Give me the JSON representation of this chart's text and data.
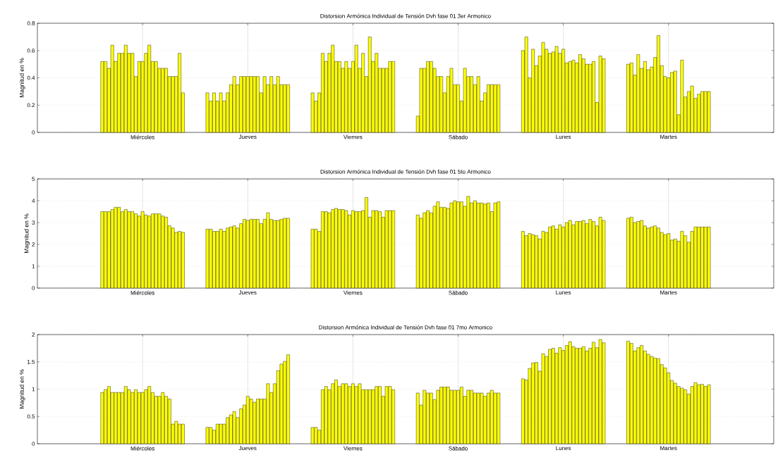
{
  "chart_data": [
    {
      "type": "bar",
      "title": "Distorsion Armónica Individual de Tensión Dvh fase 01 3er Armonico",
      "ylabel": "Magnitud en %",
      "categories": [
        "Miércoles",
        "Jueves",
        "Viernes",
        "Sábado",
        "Lunes",
        "Martes"
      ],
      "ylim": [
        0,
        0.8
      ],
      "yticks": [
        0,
        0.2,
        0.4,
        0.6,
        0.8
      ],
      "grid": true,
      "series": [
        {
          "color": "#ffff00",
          "values": [
            0.52,
            0.29,
            0.29,
            0.12,
            0.6,
            0.5
          ]
        },
        {
          "color": "#ffff00",
          "values": [
            0.52,
            0.23,
            0.23,
            0.47,
            0.7,
            0.51
          ]
        },
        {
          "color": "#ffff00",
          "values": [
            0.47,
            0.29,
            0.29,
            0.47,
            0.4,
            0.42
          ]
        },
        {
          "color": "#ffff00",
          "values": [
            0.64,
            0.23,
            0.58,
            0.52,
            0.61,
            0.57
          ]
        },
        {
          "color": "#ffff00",
          "values": [
            0.52,
            0.29,
            0.52,
            0.52,
            0.49,
            0.47
          ]
        },
        {
          "color": "#ffff00",
          "values": [
            0.58,
            0.23,
            0.58,
            0.47,
            0.56,
            0.52
          ]
        },
        {
          "color": "#ffff00",
          "values": [
            0.58,
            0.29,
            0.64,
            0.41,
            0.66,
            0.46
          ]
        },
        {
          "color": "#ffff00",
          "values": [
            0.64,
            0.35,
            0.52,
            0.41,
            0.61,
            0.48
          ]
        },
        {
          "color": "#ffff00",
          "values": [
            0.58,
            0.41,
            0.52,
            0.29,
            0.58,
            0.55
          ]
        },
        {
          "color": "#ffff00",
          "values": [
            0.58,
            0.35,
            0.47,
            0.41,
            0.59,
            0.71
          ]
        },
        {
          "color": "#ffff00",
          "values": [
            0.41,
            0.41,
            0.52,
            0.47,
            0.63,
            0.49
          ]
        },
        {
          "color": "#ffff00",
          "values": [
            0.52,
            0.41,
            0.47,
            0.35,
            0.58,
            0.41
          ]
        },
        {
          "color": "#ffff00",
          "values": [
            0.52,
            0.41,
            0.52,
            0.35,
            0.61,
            0.4
          ]
        },
        {
          "color": "#ffff00",
          "values": [
            0.58,
            0.41,
            0.64,
            0.23,
            0.51,
            0.44
          ]
        },
        {
          "color": "#ffff00",
          "values": [
            0.64,
            0.41,
            0.47,
            0.47,
            0.52,
            0.45
          ]
        },
        {
          "color": "#ffff00",
          "values": [
            0.52,
            0.41,
            0.58,
            0.41,
            0.53,
            0.13
          ]
        },
        {
          "color": "#ffff00",
          "values": [
            0.52,
            0.29,
            0.41,
            0.41,
            0.51,
            0.53
          ]
        },
        {
          "color": "#ffff00",
          "values": [
            0.47,
            0.41,
            0.7,
            0.35,
            0.57,
            0.26
          ]
        },
        {
          "color": "#ffff00",
          "values": [
            0.47,
            0.35,
            0.52,
            0.41,
            0.54,
            0.3
          ]
        },
        {
          "color": "#ffff00",
          "values": [
            0.47,
            0.41,
            0.58,
            0.23,
            0.5,
            0.34
          ]
        },
        {
          "color": "#ffff00",
          "values": [
            0.41,
            0.35,
            0.47,
            0.29,
            0.5,
            0.25
          ]
        },
        {
          "color": "#ffff00",
          "values": [
            0.41,
            0.41,
            0.47,
            0.35,
            0.52,
            0.28
          ]
        },
        {
          "color": "#ffff00",
          "values": [
            0.41,
            0.35,
            0.47,
            0.35,
            0.22,
            0.3
          ]
        },
        {
          "color": "#ffff00",
          "values": [
            0.58,
            0.35,
            0.52,
            0.35,
            0.56,
            0.3
          ]
        },
        {
          "color": "#ffff00",
          "values": [
            0.29,
            0.35,
            0.52,
            0.35,
            0.54,
            0.3
          ]
        }
      ]
    },
    {
      "type": "bar",
      "title": "Distorsion Armónica Individual de Tensión Dvh fase 01 5to Armonico",
      "ylabel": "Magnitud en %",
      "categories": [
        "Miércoles",
        "Jueves",
        "Viernes",
        "Sábado",
        "Lunes",
        "Martes"
      ],
      "ylim": [
        0,
        5
      ],
      "yticks": [
        0,
        1,
        2,
        3,
        4,
        5
      ],
      "grid": true,
      "series": [
        {
          "color": "#ffff00",
          "values": [
            3.5,
            2.7,
            2.7,
            3.35,
            2.6,
            3.2
          ]
        },
        {
          "color": "#ffff00",
          "values": [
            3.5,
            2.7,
            2.7,
            3.2,
            2.4,
            3.25
          ]
        },
        {
          "color": "#ffff00",
          "values": [
            3.5,
            2.6,
            2.6,
            3.45,
            2.5,
            3.0
          ]
        },
        {
          "color": "#ffff00",
          "values": [
            3.6,
            2.6,
            3.5,
            3.55,
            2.45,
            3.05
          ]
        },
        {
          "color": "#ffff00",
          "values": [
            3.7,
            2.7,
            3.5,
            3.45,
            2.4,
            3.1
          ]
        },
        {
          "color": "#ffff00",
          "values": [
            3.7,
            2.6,
            3.45,
            3.75,
            2.25,
            2.85
          ]
        },
        {
          "color": "#ffff00",
          "values": [
            3.5,
            2.75,
            3.6,
            3.95,
            2.6,
            2.75
          ]
        },
        {
          "color": "#ffff00",
          "values": [
            3.6,
            2.8,
            3.65,
            3.7,
            2.55,
            2.8
          ]
        },
        {
          "color": "#ffff00",
          "values": [
            3.5,
            2.85,
            3.6,
            3.7,
            2.8,
            2.85
          ]
        },
        {
          "color": "#ffff00",
          "values": [
            3.5,
            2.75,
            3.6,
            3.65,
            2.85,
            2.75
          ]
        },
        {
          "color": "#ffff00",
          "values": [
            3.4,
            2.95,
            3.55,
            3.9,
            2.7,
            2.55
          ]
        },
        {
          "color": "#ffff00",
          "values": [
            3.3,
            3.15,
            3.35,
            4.0,
            2.9,
            2.45
          ]
        },
        {
          "color": "#ffff00",
          "values": [
            3.5,
            3.1,
            3.55,
            3.95,
            2.8,
            2.5
          ]
        },
        {
          "color": "#ffff00",
          "values": [
            3.35,
            3.15,
            3.5,
            3.95,
            3.0,
            2.2
          ]
        },
        {
          "color": "#ffff00",
          "values": [
            3.3,
            3.15,
            3.5,
            3.75,
            3.1,
            2.25
          ]
        },
        {
          "color": "#ffff00",
          "values": [
            3.4,
            3.15,
            3.55,
            4.2,
            2.9,
            2.15
          ]
        },
        {
          "color": "#ffff00",
          "values": [
            3.4,
            2.95,
            4.15,
            3.9,
            3.05,
            2.6
          ]
        },
        {
          "color": "#ffff00",
          "values": [
            3.4,
            3.15,
            3.25,
            4.0,
            3.05,
            2.4
          ]
        },
        {
          "color": "#ffff00",
          "values": [
            3.3,
            3.45,
            3.55,
            3.9,
            3.1,
            2.1
          ]
        },
        {
          "color": "#ffff00",
          "values": [
            3.25,
            3.15,
            3.55,
            3.9,
            2.95,
            2.6
          ]
        },
        {
          "color": "#ffff00",
          "values": [
            2.85,
            3.1,
            3.5,
            3.85,
            3.15,
            2.8
          ]
        },
        {
          "color": "#ffff00",
          "values": [
            2.75,
            3.1,
            3.25,
            3.9,
            3.05,
            2.8
          ]
        },
        {
          "color": "#ffff00",
          "values": [
            2.55,
            3.15,
            3.55,
            3.5,
            2.85,
            2.8
          ]
        },
        {
          "color": "#ffff00",
          "values": [
            2.6,
            3.2,
            3.55,
            3.9,
            3.25,
            2.8
          ]
        },
        {
          "color": "#ffff00",
          "values": [
            2.55,
            3.2,
            3.55,
            3.95,
            3.1,
            2.8
          ]
        }
      ]
    },
    {
      "type": "bar",
      "title": "Distorsion Armónica Individual de Tensión Dvh fase 01 7mo Armonico",
      "ylabel": "Magnitud en %",
      "categories": [
        "Miércoles",
        "Jueves",
        "Viernes",
        "Sábado",
        "Lunes",
        "Martes"
      ],
      "ylim": [
        0,
        2
      ],
      "yticks": [
        0,
        0.5,
        1,
        1.5,
        2
      ],
      "grid": true,
      "series": [
        {
          "color": "#ffff00",
          "values": [
            0.94,
            0.3,
            0.3,
            0.93,
            1.19,
            1.88
          ]
        },
        {
          "color": "#ffff00",
          "values": [
            0.99,
            0.3,
            0.3,
            0.71,
            1.17,
            1.84
          ]
        },
        {
          "color": "#ffff00",
          "values": [
            1.05,
            0.25,
            0.25,
            0.98,
            1.38,
            1.7
          ]
        },
        {
          "color": "#ffff00",
          "values": [
            0.94,
            0.36,
            0.99,
            0.93,
            1.48,
            1.76
          ]
        },
        {
          "color": "#ffff00",
          "values": [
            0.94,
            0.36,
            1.05,
            0.93,
            1.49,
            1.8
          ]
        },
        {
          "color": "#ffff00",
          "values": [
            0.94,
            0.36,
            0.99,
            0.81,
            1.33,
            1.7
          ]
        },
        {
          "color": "#ffff00",
          "values": [
            0.94,
            0.48,
            1.1,
            0.98,
            1.65,
            1.64
          ]
        },
        {
          "color": "#ffff00",
          "values": [
            1.05,
            0.53,
            1.17,
            1.04,
            1.6,
            1.6
          ]
        },
        {
          "color": "#ffff00",
          "values": [
            0.99,
            0.59,
            1.05,
            1.04,
            1.73,
            1.57
          ]
        },
        {
          "color": "#ffff00",
          "values": [
            0.94,
            0.48,
            1.1,
            1.04,
            1.75,
            1.56
          ]
        },
        {
          "color": "#ffff00",
          "values": [
            0.99,
            0.64,
            1.1,
            0.98,
            1.66,
            1.45
          ]
        },
        {
          "color": "#ffff00",
          "values": [
            0.94,
            0.71,
            1.05,
            0.98,
            1.76,
            1.39
          ]
        },
        {
          "color": "#ffff00",
          "values": [
            0.94,
            0.87,
            1.1,
            0.98,
            1.71,
            1.3
          ]
        },
        {
          "color": "#ffff00",
          "values": [
            0.99,
            0.82,
            1.05,
            1.04,
            1.8,
            1.16
          ]
        },
        {
          "color": "#ffff00",
          "values": [
            1.05,
            0.76,
            1.1,
            0.87,
            1.87,
            1.11
          ]
        },
        {
          "color": "#ffff00",
          "values": [
            0.94,
            0.82,
            0.99,
            0.98,
            1.78,
            1.05
          ]
        },
        {
          "color": "#ffff00",
          "values": [
            0.87,
            0.82,
            0.99,
            0.98,
            1.75,
            1.02
          ]
        },
        {
          "color": "#ffff00",
          "values": [
            0.87,
            0.82,
            0.99,
            0.93,
            1.75,
            0.99
          ]
        },
        {
          "color": "#ffff00",
          "values": [
            0.94,
            1.1,
            0.99,
            0.93,
            1.78,
            0.91
          ]
        },
        {
          "color": "#ffff00",
          "values": [
            0.87,
            0.94,
            1.05,
            0.93,
            1.7,
            1.05
          ]
        },
        {
          "color": "#ffff00",
          "values": [
            0.82,
            1.1,
            1.05,
            0.87,
            1.75,
            1.12
          ]
        },
        {
          "color": "#ffff00",
          "values": [
            0.36,
            1.34,
            0.87,
            0.93,
            1.86,
            1.08
          ]
        },
        {
          "color": "#ffff00",
          "values": [
            0.41,
            1.46,
            1.05,
            0.98,
            1.76,
            1.09
          ]
        },
        {
          "color": "#ffff00",
          "values": [
            0.36,
            1.51,
            1.05,
            0.93,
            1.91,
            1.05
          ]
        },
        {
          "color": "#ffff00",
          "values": [
            0.36,
            1.63,
            0.99,
            0.93,
            1.85,
            1.08
          ]
        }
      ]
    }
  ]
}
